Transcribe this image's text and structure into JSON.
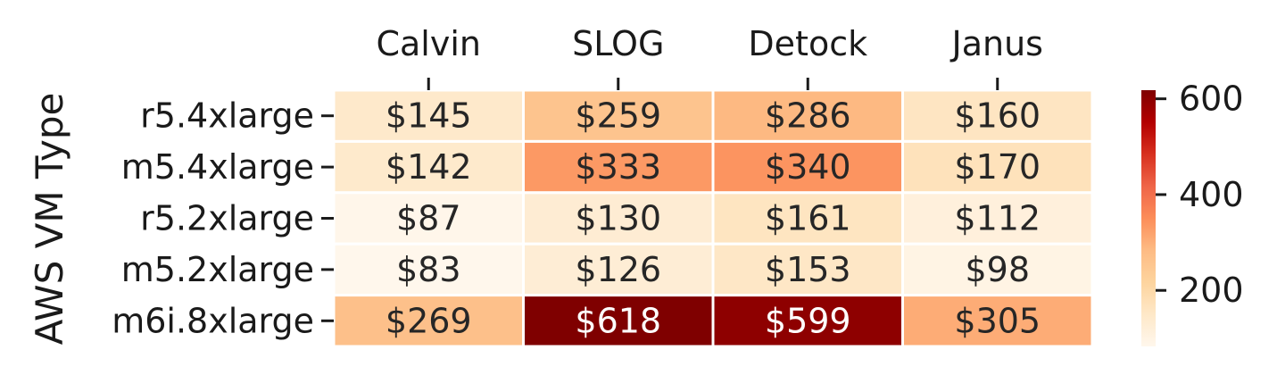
{
  "chart_data": {
    "type": "heatmap",
    "title": "",
    "xlabel": "",
    "ylabel": "AWS VM Type",
    "columns": [
      "Calvin",
      "SLOG",
      "Detock",
      "Janus"
    ],
    "rows": [
      "r5.4xlarge",
      "m5.4xlarge",
      "r5.2xlarge",
      "m5.2xlarge",
      "m6i.8xlarge"
    ],
    "values": [
      [
        145,
        259,
        286,
        160
      ],
      [
        142,
        333,
        340,
        170
      ],
      [
        87,
        130,
        161,
        112
      ],
      [
        83,
        126,
        153,
        98
      ],
      [
        269,
        618,
        599,
        305
      ]
    ],
    "value_labels": [
      [
        "$145",
        "$259",
        "$286",
        "$160"
      ],
      [
        "$142",
        "$333",
        "$340",
        "$170"
      ],
      [
        "$87",
        "$130",
        "$161",
        "$112"
      ],
      [
        "$83",
        "$126",
        "$153",
        "$98"
      ],
      [
        "$269",
        "$618",
        "$599",
        "$305"
      ]
    ],
    "colormap": "OrRd",
    "color_range": [
      83,
      618
    ],
    "colorbar_ticks": [
      200,
      400,
      600
    ],
    "colorbar_tick_labels": [
      "200",
      "400",
      "600"
    ],
    "x_tick_position": "top",
    "legend": "colorbar-right",
    "grid": false
  }
}
